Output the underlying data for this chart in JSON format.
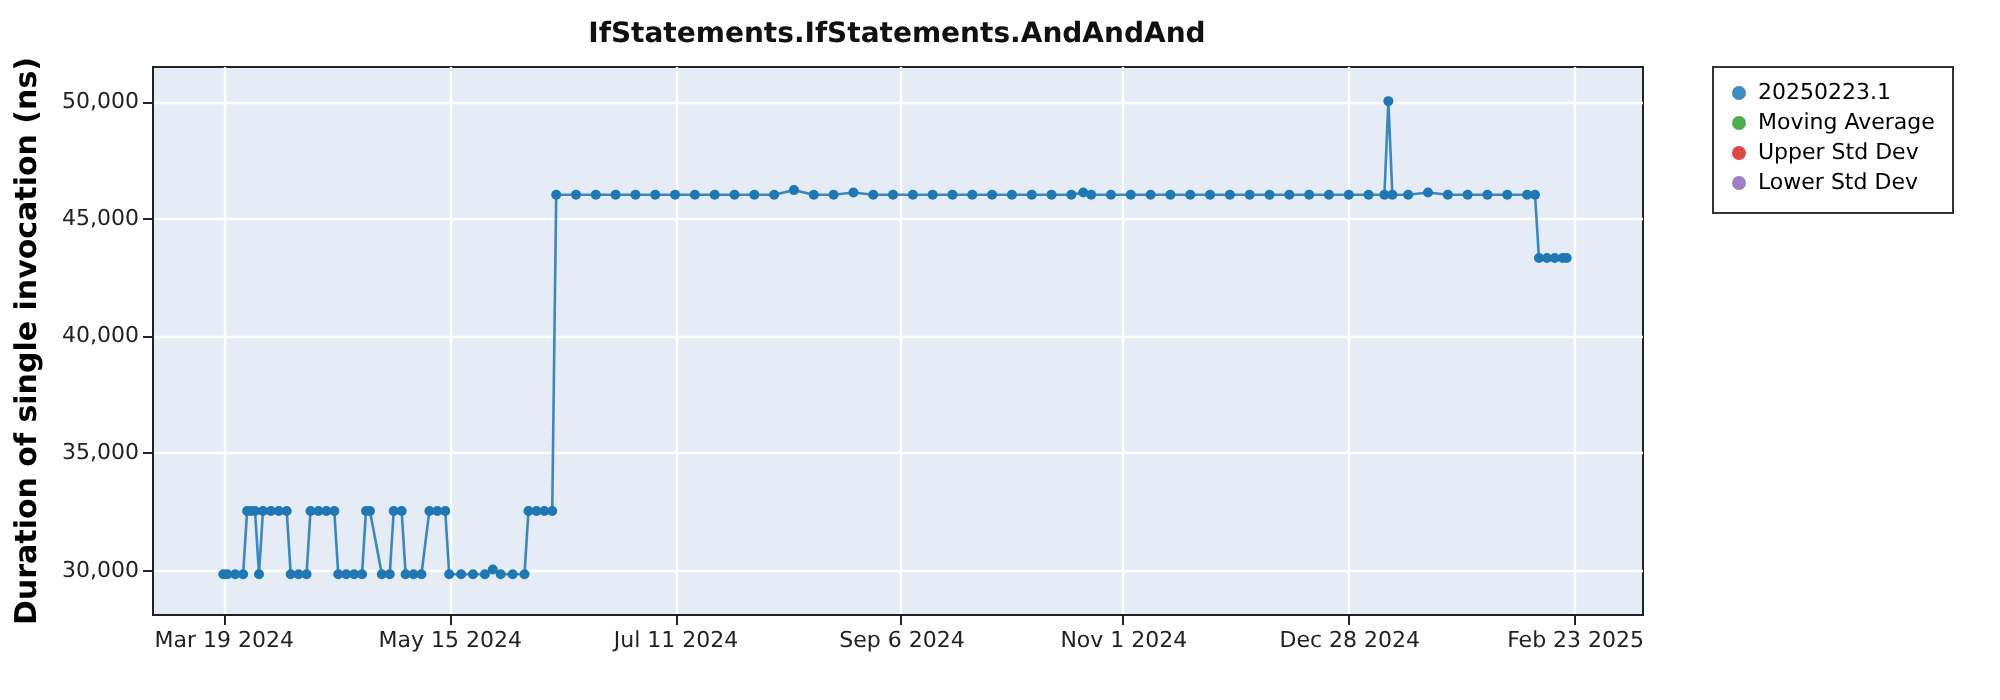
{
  "chart_data": {
    "type": "line",
    "title": "IfStatements.IfStatements.AndAndAnd",
    "ylabel": "Duration of single invocation (ns)",
    "xlim": [
      "2024-03-01",
      "2025-03-12"
    ],
    "xticks": [
      {
        "value": "2024-03-19",
        "label": "Mar 19 2024"
      },
      {
        "value": "2024-05-15",
        "label": "May 15 2024"
      },
      {
        "value": "2024-07-11",
        "label": "Jul 11 2024"
      },
      {
        "value": "2024-09-06",
        "label": "Sep 6 2024"
      },
      {
        "value": "2024-11-01",
        "label": "Nov 1 2024"
      },
      {
        "value": "2024-12-28",
        "label": "Dec 28 2024"
      },
      {
        "value": "2025-02-23",
        "label": "Feb 23 2025"
      }
    ],
    "ylim": [
      28100,
      51500
    ],
    "yticks": [
      {
        "value": 30000,
        "label": "30,000"
      },
      {
        "value": 35000,
        "label": "35,000"
      },
      {
        "value": 40000,
        "label": "40,000"
      },
      {
        "value": 45000,
        "label": "45,000"
      },
      {
        "value": 50000,
        "label": "50,000"
      }
    ],
    "grid": true,
    "legend": "right",
    "marker": "circle",
    "line_style": "solid",
    "series": [
      {
        "name": "20250223.1",
        "color": "#1f77b4",
        "x": [
          "2024-03-19",
          "2024-03-20",
          "2024-03-22",
          "2024-03-24",
          "2024-03-25",
          "2024-03-26",
          "2024-03-27",
          "2024-03-28",
          "2024-03-29",
          "2024-03-31",
          "2024-04-02",
          "2024-04-04",
          "2024-04-05",
          "2024-04-07",
          "2024-04-09",
          "2024-04-10",
          "2024-04-12",
          "2024-04-14",
          "2024-04-16",
          "2024-04-17",
          "2024-04-19",
          "2024-04-21",
          "2024-04-23",
          "2024-04-24",
          "2024-04-25",
          "2024-04-28",
          "2024-04-30",
          "2024-05-01",
          "2024-05-03",
          "2024-05-04",
          "2024-05-06",
          "2024-05-08",
          "2024-05-10",
          "2024-05-12",
          "2024-05-14",
          "2024-05-15",
          "2024-05-18",
          "2024-05-21",
          "2024-05-24",
          "2024-05-26",
          "2024-05-28",
          "2024-05-31",
          "2024-06-03",
          "2024-06-04",
          "2024-06-06",
          "2024-06-08",
          "2024-06-10",
          "2024-06-11",
          "2024-06-16",
          "2024-06-21",
          "2024-06-26",
          "2024-07-01",
          "2024-07-06",
          "2024-07-11",
          "2024-07-16",
          "2024-07-21",
          "2024-07-26",
          "2024-07-31",
          "2024-08-05",
          "2024-08-10",
          "2024-08-15",
          "2024-08-20",
          "2024-08-25",
          "2024-08-30",
          "2024-09-04",
          "2024-09-09",
          "2024-09-14",
          "2024-09-19",
          "2024-09-24",
          "2024-09-29",
          "2024-10-04",
          "2024-10-09",
          "2024-10-14",
          "2024-10-19",
          "2024-10-22",
          "2024-10-24",
          "2024-10-29",
          "2024-11-03",
          "2024-11-08",
          "2024-11-13",
          "2024-11-18",
          "2024-11-23",
          "2024-11-28",
          "2024-12-03",
          "2024-12-08",
          "2024-12-13",
          "2024-12-18",
          "2024-12-23",
          "2024-12-28",
          "2025-01-02",
          "2025-01-06",
          "2025-01-07",
          "2025-01-08",
          "2025-01-12",
          "2025-01-17",
          "2025-01-22",
          "2025-01-27",
          "2025-02-01",
          "2025-02-06",
          "2025-02-11",
          "2025-02-13",
          "2025-02-14",
          "2025-02-16",
          "2025-02-18",
          "2025-02-20",
          "2025-02-21"
        ],
        "values": [
          29800,
          29800,
          29800,
          29800,
          32500,
          32500,
          32500,
          29800,
          32500,
          32500,
          32500,
          32500,
          29800,
          29800,
          29800,
          32500,
          32500,
          32500,
          32500,
          29800,
          29800,
          29800,
          29800,
          32500,
          32500,
          29800,
          29800,
          32500,
          32500,
          29800,
          29800,
          29800,
          32500,
          32500,
          32500,
          29800,
          29800,
          29800,
          29800,
          30000,
          29800,
          29800,
          29800,
          32500,
          32500,
          32500,
          32500,
          46000,
          46000,
          46000,
          46000,
          46000,
          46000,
          46000,
          46000,
          46000,
          46000,
          46000,
          46000,
          46200,
          46000,
          46000,
          46100,
          46000,
          46000,
          46000,
          46000,
          46000,
          46000,
          46000,
          46000,
          46000,
          46000,
          46000,
          46100,
          46000,
          46000,
          46000,
          46000,
          46000,
          46000,
          46000,
          46000,
          46000,
          46000,
          46000,
          46000,
          46000,
          46000,
          46000,
          46000,
          50000,
          46000,
          46000,
          46100,
          46000,
          46000,
          46000,
          46000,
          46000,
          46000,
          43300,
          43300,
          43300,
          43300,
          43300
        ]
      },
      {
        "name": "Moving Average",
        "color": "#2ca02c"
      },
      {
        "name": "Upper Std Dev",
        "color": "#d62728"
      },
      {
        "name": "Lower Std Dev",
        "color": "#9467bd"
      }
    ]
  }
}
